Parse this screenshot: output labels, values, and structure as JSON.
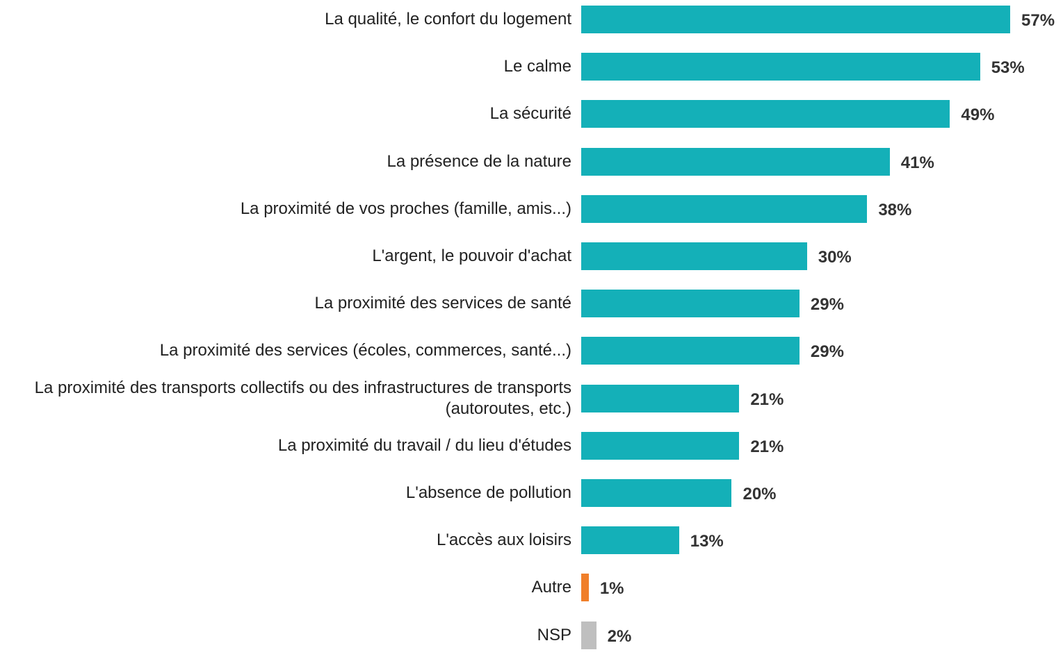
{
  "chart_data": {
    "type": "barh",
    "categories": [
      "La qualité, le confort du logement",
      "Le calme",
      "La sécurité",
      "La présence de la nature",
      "La proximité de vos proches (famille, amis...)",
      "L'argent, le pouvoir d'achat",
      "La proximité des services de santé",
      "La proximité des services (écoles, commerces, santé...)",
      "La proximité des transports collectifs ou des infrastructures de transports (autoroutes, etc.)",
      "La proximité du travail / du lieu d'études",
      "L'absence de pollution",
      "L'accès aux loisirs",
      "Autre",
      "NSP"
    ],
    "values": [
      57,
      53,
      49,
      41,
      38,
      30,
      29,
      29,
      21,
      21,
      20,
      13,
      1,
      2
    ],
    "value_labels": [
      "57%",
      "53%",
      "49%",
      "41%",
      "38%",
      "30%",
      "29%",
      "29%",
      "21%",
      "21%",
      "20%",
      "13%",
      "1%",
      "2%"
    ],
    "colors": [
      "#14b0b8",
      "#14b0b8",
      "#14b0b8",
      "#14b0b8",
      "#14b0b8",
      "#14b0b8",
      "#14b0b8",
      "#14b0b8",
      "#14b0b8",
      "#14b0b8",
      "#14b0b8",
      "#14b0b8",
      "#f07f2a",
      "#bfbfbf"
    ]
  }
}
